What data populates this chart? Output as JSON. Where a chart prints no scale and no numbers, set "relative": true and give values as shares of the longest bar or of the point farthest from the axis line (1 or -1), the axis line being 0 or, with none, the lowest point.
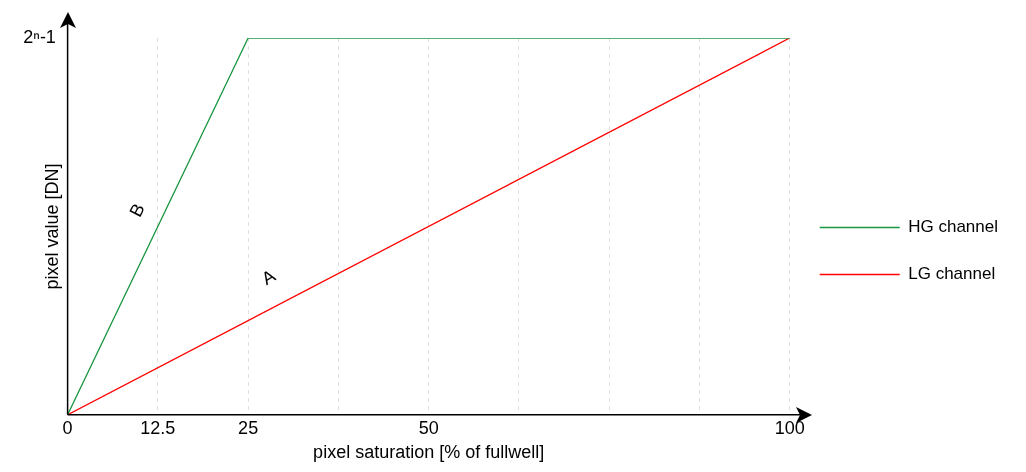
{
  "chart_data": {
    "type": "line",
    "xlabel": "pixel saturation [% of fullwell]",
    "ylabel": "pixel value [DN]",
    "series": [
      {
        "name": "HG channel",
        "color": "#1a9641",
        "x": [
          0,
          25,
          100
        ],
        "values": [
          0,
          1,
          1
        ]
      },
      {
        "name": "LG channel",
        "color": "#ff0000",
        "x": [
          0,
          100
        ],
        "values": [
          0,
          1
        ]
      }
    ],
    "relative": true,
    "xlim": [
      0,
      100
    ],
    "xticks": [
      0,
      12.5,
      25,
      {
        "value": 37.5,
        "label": null
      },
      50,
      {
        "value": 62.5,
        "label": null
      },
      {
        "value": 75,
        "label": null
      },
      {
        "value": 87.5,
        "label": null
      },
      100
    ],
    "annotations": [
      "2ⁿ-1",
      "B",
      "A"
    ],
    "grid": "x",
    "legend": "right",
    "marker": "none",
    "line_style": "solid"
  }
}
